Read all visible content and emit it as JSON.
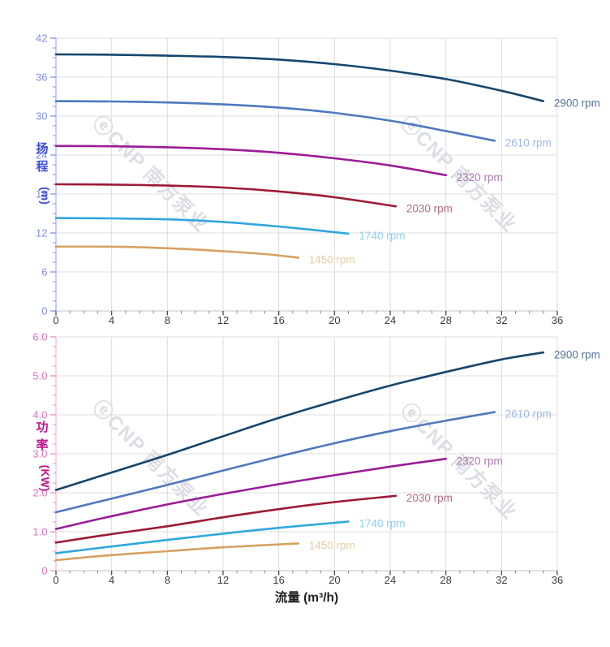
{
  "figure": {
    "x_axis_title": "流量 (m³/h)",
    "x_tick_labels": [
      "0",
      "4",
      "8",
      "12",
      "16",
      "20",
      "24",
      "28",
      "32",
      "36"
    ],
    "watermark_text": "ⓔCNP 南方泵业",
    "watermark_color": "#dbdee4",
    "grid_color": "#dcdcdc",
    "x_axis_line_color": "#c2c2c2",
    "x_tick_color": "#4a4a4a",
    "x_tick_label_color": "#3d3d3d",
    "x_title_color": "#1f1f1f"
  },
  "chart_data": [
    {
      "type": "line",
      "title": "",
      "ylabel": "扬程 (m)",
      "ylabel_stack": [
        "扬",
        "程"
      ],
      "ylabel_unit": "(m)",
      "xlabel": "流量 (m³/h)",
      "xlim": [
        0,
        36
      ],
      "ylim": [
        0,
        42
      ],
      "x_major": 4,
      "x_minor": 1,
      "y_major": 6,
      "y_minor": 1.5,
      "y_tick_labels": [
        "0",
        "6",
        "12",
        "18",
        "24",
        "30",
        "36",
        "42"
      ],
      "grid": true,
      "legend_position": "end-of-line-labels",
      "colors": {
        "axis_title": "#3c4ed8",
        "tick_labels": "#7d8de2",
        "tick_marks": "#93a0ea",
        "axis_line": "#b7bff2"
      },
      "watermark_centers": [
        [
          180,
          220
        ],
        [
          560,
          220
        ]
      ],
      "series": [
        {
          "name": "2900 rpm",
          "color": "#15466e",
          "label_color": "#56749b",
          "x": [
            0,
            4,
            8,
            12,
            16,
            20,
            24,
            28,
            32,
            35
          ],
          "y": [
            39.5,
            39.45,
            39.3,
            39.1,
            38.7,
            38.0,
            37.0,
            35.7,
            33.9,
            32.3
          ]
        },
        {
          "name": "2610 rpm",
          "color": "#4e79bf",
          "label_color": "#9fb9e6",
          "x": [
            0,
            4,
            8,
            12,
            16,
            20,
            24,
            28,
            31.5
          ],
          "y": [
            32.3,
            32.25,
            32.1,
            31.8,
            31.3,
            30.5,
            29.3,
            27.7,
            26.2
          ]
        },
        {
          "name": "2320 rpm",
          "color": "#9b1c97",
          "label_color": "#b577b5",
          "x": [
            0,
            4,
            8,
            12,
            16,
            20,
            24,
            28
          ],
          "y": [
            25.4,
            25.35,
            25.2,
            24.9,
            24.35,
            23.5,
            22.4,
            20.9
          ]
        },
        {
          "name": "2030 rpm",
          "color": "#9c1a38",
          "label_color": "#b16e86",
          "x": [
            0,
            4,
            8,
            12,
            16,
            20,
            24.4
          ],
          "y": [
            19.5,
            19.45,
            19.3,
            19.0,
            18.4,
            17.5,
            16.1
          ]
        },
        {
          "name": "1740 rpm",
          "color": "#30a6e0",
          "label_color": "#8ecdf1",
          "x": [
            0,
            4,
            8,
            12,
            16,
            21
          ],
          "y": [
            14.3,
            14.25,
            14.1,
            13.7,
            13.0,
            11.9
          ]
        },
        {
          "name": "1450 rpm",
          "color": "#d6a162",
          "label_color": "#e7cba4",
          "x": [
            0,
            3,
            6,
            9,
            12,
            15,
            17.4
          ],
          "y": [
            9.9,
            9.9,
            9.8,
            9.55,
            9.2,
            8.75,
            8.2
          ]
        }
      ]
    },
    {
      "type": "line",
      "title": "",
      "ylabel": "功率 (KW)",
      "ylabel_stack": [
        "功",
        "率"
      ],
      "ylabel_unit": "(KW)",
      "xlabel": "流量 (m³/h)",
      "xlim": [
        0,
        36
      ],
      "ylim": [
        0,
        6
      ],
      "x_major": 4,
      "x_minor": 1,
      "y_major": 1,
      "y_minor": 0.25,
      "y_tick_labels": [
        "0",
        "1.0",
        "2.0",
        "3.0",
        "4.0",
        "5.0",
        "6.0"
      ],
      "grid": true,
      "legend_position": "end-of-line-labels",
      "colors": {
        "axis_title": "#c2158e",
        "tick_labels": "#e272b8",
        "tick_marks": "#ef9ed2",
        "axis_line": "#f4c3e2"
      },
      "watermark_centers": [
        [
          180,
          570
        ],
        [
          560,
          574
        ]
      ],
      "series": [
        {
          "name": "2900 rpm",
          "color": "#15466e",
          "label_color": "#56749b",
          "x": [
            0,
            4,
            8,
            12,
            16,
            20,
            24,
            28,
            32,
            35
          ],
          "y": [
            2.07,
            2.52,
            2.97,
            3.45,
            3.92,
            4.35,
            4.75,
            5.1,
            5.42,
            5.6
          ]
        },
        {
          "name": "2610 rpm",
          "color": "#4e79bf",
          "label_color": "#9fb9e6",
          "x": [
            0,
            4,
            8,
            12,
            16,
            20,
            24,
            28,
            31.5
          ],
          "y": [
            1.5,
            1.85,
            2.2,
            2.57,
            2.93,
            3.27,
            3.58,
            3.85,
            4.07
          ]
        },
        {
          "name": "2320 rpm",
          "color": "#9b1c97",
          "label_color": "#b577b5",
          "x": [
            0,
            4,
            8,
            12,
            16,
            20,
            24,
            28
          ],
          "y": [
            1.07,
            1.4,
            1.7,
            1.97,
            2.22,
            2.45,
            2.67,
            2.87
          ]
        },
        {
          "name": "2030 rpm",
          "color": "#9c1a38",
          "label_color": "#b16e86",
          "x": [
            0,
            4,
            8,
            12,
            16,
            20,
            24.4
          ],
          "y": [
            0.72,
            0.94,
            1.14,
            1.37,
            1.58,
            1.76,
            1.92
          ]
        },
        {
          "name": "1740 rpm",
          "color": "#30a6e0",
          "label_color": "#8ecdf1",
          "x": [
            0,
            4,
            8,
            12,
            16,
            21
          ],
          "y": [
            0.45,
            0.62,
            0.79,
            0.95,
            1.1,
            1.26
          ]
        },
        {
          "name": "1450 rpm",
          "color": "#d6a162",
          "label_color": "#e7cba4",
          "x": [
            0,
            4,
            8,
            12,
            17.4
          ],
          "y": [
            0.27,
            0.4,
            0.5,
            0.6,
            0.7
          ]
        }
      ]
    }
  ]
}
